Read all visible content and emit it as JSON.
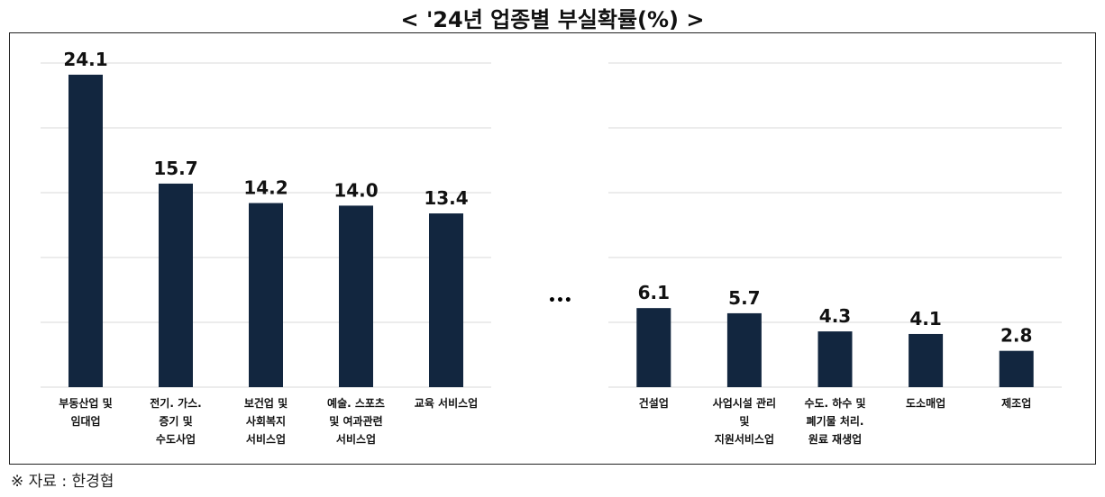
{
  "title": "< '24년 업종별 부실확률(%) >",
  "ellipsis": "•••",
  "source": "※ 자료 : 한경협",
  "chart_data": [
    {
      "type": "bar",
      "color": "#12263f",
      "grid": true,
      "categories": [
        "부동산업 및\n임대업",
        "전기. 가스.\n증기 및\n수도사업",
        "보건업 및\n사회복지\n서비스업",
        "예술. 스포츠\n및 여과관련\n서비스업",
        "교육 서비스업"
      ],
      "values": [
        24.1,
        15.7,
        14.2,
        14.0,
        13.4
      ],
      "value_labels": [
        "24.1",
        "15.7",
        "14.2",
        "14.0",
        "13.4"
      ],
      "ylim": [
        0,
        25
      ],
      "yticks": [
        0,
        5,
        10,
        15,
        20,
        25
      ]
    },
    {
      "type": "bar",
      "color": "#12263f",
      "grid": true,
      "categories": [
        "건설업",
        "사업시설 관리\n및\n지원서비스업",
        "수도. 하수 및\n폐기물 처리.\n원료 재생업",
        "도소매업",
        "제조업"
      ],
      "values": [
        6.1,
        5.7,
        4.3,
        4.1,
        2.8
      ],
      "value_labels": [
        "6.1",
        "5.7",
        "4.3",
        "4.1",
        "2.8"
      ],
      "ylim": [
        0,
        25
      ],
      "yticks": [
        0,
        5,
        10,
        15,
        20,
        25
      ]
    }
  ]
}
